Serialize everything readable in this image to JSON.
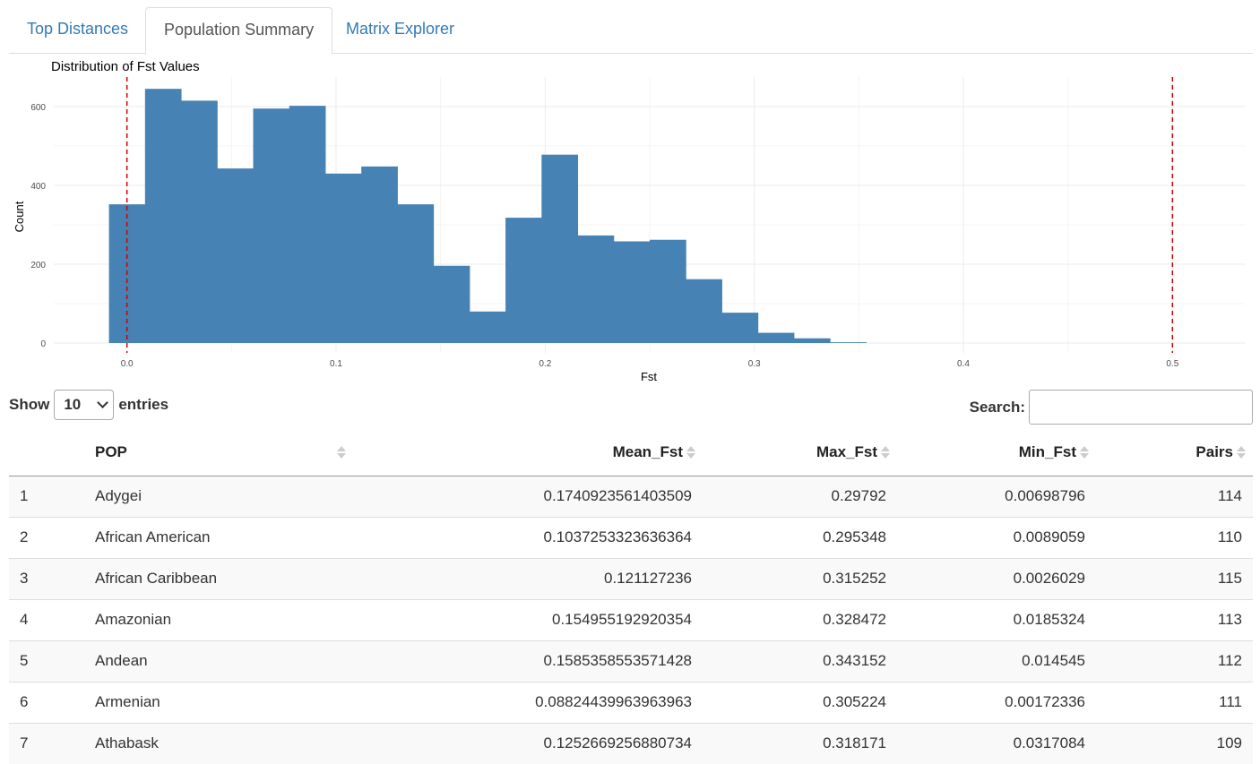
{
  "tabs": [
    {
      "label": "Top Distances",
      "active": false
    },
    {
      "label": "Population Summary",
      "active": true
    },
    {
      "label": "Matrix Explorer",
      "active": false
    }
  ],
  "chart_data": {
    "type": "bar",
    "title": "Distribution of Fst Values",
    "xlabel": "Fst",
    "ylabel": "Count",
    "xlim": [
      -0.035,
      0.535
    ],
    "ylim": [
      -25,
      675
    ],
    "x_ticks": [
      "0.0",
      "0.1",
      "0.2",
      "0.3",
      "0.4",
      "0.5"
    ],
    "y_ticks": [
      "0",
      "200",
      "400",
      "600"
    ],
    "bin_width": 0.01724,
    "bin_start": -0.0086,
    "values": [
      352,
      645,
      615,
      443,
      595,
      602,
      430,
      448,
      352,
      196,
      80,
      318,
      478,
      273,
      258,
      262,
      162,
      77,
      26,
      12,
      2,
      0
    ],
    "bar_color": "#4682b4",
    "reference_lines": [
      0.0,
      0.5
    ],
    "reference_line_color": "#cc0000",
    "grid": true
  },
  "controls": {
    "show_label": "Show",
    "entries_label": "entries",
    "page_length": "10",
    "search_label": "Search:",
    "search_value": ""
  },
  "table": {
    "columns": [
      "",
      "POP",
      "Mean_Fst",
      "Max_Fst",
      "Min_Fst",
      "Pairs"
    ],
    "rows": [
      [
        "1",
        "Adygei",
        "0.1740923561403509",
        "0.29792",
        "0.00698796",
        "114"
      ],
      [
        "2",
        "African American",
        "0.1037253323636364",
        "0.295348",
        "0.0089059",
        "110"
      ],
      [
        "3",
        "African Caribbean",
        "0.121127236",
        "0.315252",
        "0.0026029",
        "115"
      ],
      [
        "4",
        "Amazonian",
        "0.154955192920354",
        "0.328472",
        "0.0185324",
        "113"
      ],
      [
        "5",
        "Andean",
        "0.1585358553571428",
        "0.343152",
        "0.014545",
        "112"
      ],
      [
        "6",
        "Armenian",
        "0.08824439963963963",
        "0.305224",
        "0.00172336",
        "111"
      ],
      [
        "7",
        "Athabask",
        "0.1252669256880734",
        "0.318171",
        "0.0317084",
        "109"
      ]
    ]
  }
}
